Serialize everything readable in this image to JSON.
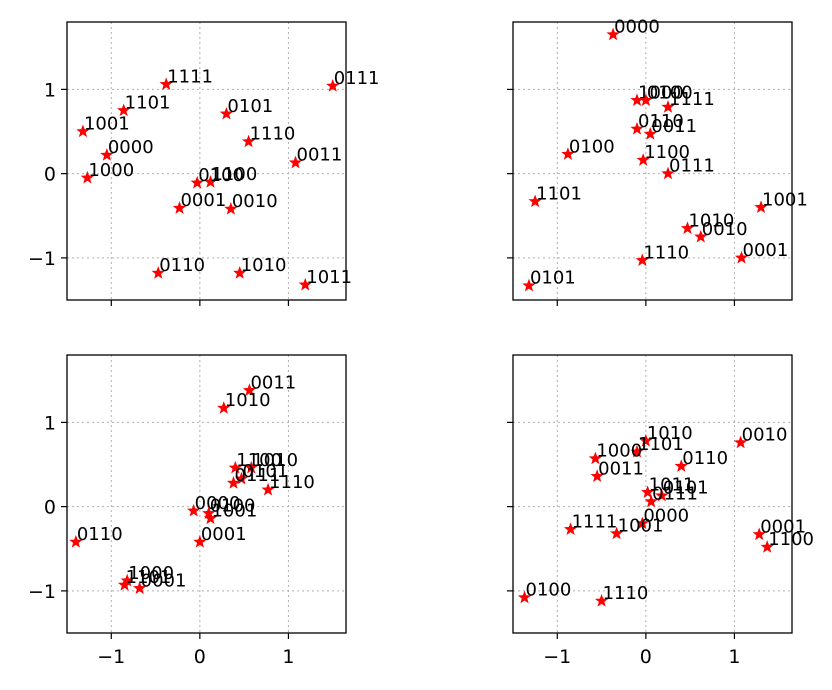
{
  "chart_data": [
    {
      "type": "scatter",
      "xlim": [
        -1.5,
        1.65
      ],
      "ylim": [
        -1.5,
        1.8
      ],
      "xticks": [
        -1,
        0,
        1
      ],
      "yticks": [
        -1,
        0,
        1
      ],
      "show_xticklabels": false,
      "show_yticklabels": true,
      "grid": true,
      "marker_color": "#ff0000",
      "points": [
        {
          "label": "1111",
          "x": -0.38,
          "y": 1.06
        },
        {
          "label": "0111",
          "x": 1.5,
          "y": 1.04
        },
        {
          "label": "1101",
          "x": -0.86,
          "y": 0.75
        },
        {
          "label": "0101",
          "x": 0.3,
          "y": 0.71
        },
        {
          "label": "1001",
          "x": -1.32,
          "y": 0.5
        },
        {
          "label": "1110",
          "x": 0.55,
          "y": 0.38
        },
        {
          "label": "0000",
          "x": -1.05,
          "y": 0.22
        },
        {
          "label": "0011",
          "x": 1.08,
          "y": 0.13
        },
        {
          "label": "1100",
          "x": 0.12,
          "y": -0.1
        },
        {
          "label": "0100",
          "x": -0.03,
          "y": -0.11
        },
        {
          "label": "1000",
          "x": -1.27,
          "y": -0.05
        },
        {
          "label": "0001",
          "x": -0.23,
          "y": -0.41
        },
        {
          "label": "0010",
          "x": 0.35,
          "y": -0.42
        },
        {
          "label": "0110",
          "x": -0.47,
          "y": -1.18
        },
        {
          "label": "1010",
          "x": 0.45,
          "y": -1.18
        },
        {
          "label": "1011",
          "x": 1.19,
          "y": -1.32
        }
      ]
    },
    {
      "type": "scatter",
      "xlim": [
        -1.5,
        1.65
      ],
      "ylim": [
        -1.5,
        1.8
      ],
      "xticks": [
        -1,
        0,
        1
      ],
      "yticks": [
        -1,
        0,
        1
      ],
      "show_xticklabels": false,
      "show_yticklabels": false,
      "grid": true,
      "marker_color": "#ff0000",
      "points": [
        {
          "label": "0000",
          "x": -0.37,
          "y": 1.65
        },
        {
          "label": "1000",
          "x": -0.1,
          "y": 0.87
        },
        {
          "label": "0100",
          "x": 0.0,
          "y": 0.87
        },
        {
          "label": "1111",
          "x": 0.25,
          "y": 0.79
        },
        {
          "label": "0110",
          "x": -0.1,
          "y": 0.53
        },
        {
          "label": "0011",
          "x": 0.05,
          "y": 0.47
        },
        {
          "label": "0100",
          "x": -0.88,
          "y": 0.23
        },
        {
          "label": "1100",
          "x": -0.03,
          "y": 0.16
        },
        {
          "label": "0111",
          "x": 0.25,
          "y": 0.0
        },
        {
          "label": "1101",
          "x": -1.25,
          "y": -0.33
        },
        {
          "label": "1001",
          "x": 1.3,
          "y": -0.4
        },
        {
          "label": "1010",
          "x": 0.47,
          "y": -0.65
        },
        {
          "label": "0010",
          "x": 0.62,
          "y": -0.75
        },
        {
          "label": "1110",
          "x": -0.04,
          "y": -1.03
        },
        {
          "label": "0001",
          "x": 1.08,
          "y": -1.0
        },
        {
          "label": "0101",
          "x": -1.32,
          "y": -1.33
        }
      ]
    },
    {
      "type": "scatter",
      "xlim": [
        -1.5,
        1.65
      ],
      "ylim": [
        -1.5,
        1.8
      ],
      "xticks": [
        -1,
        0,
        1
      ],
      "yticks": [
        -1,
        0,
        1
      ],
      "show_xticklabels": true,
      "show_yticklabels": true,
      "grid": true,
      "marker_color": "#ff0000",
      "points": [
        {
          "label": "0011",
          "x": 0.56,
          "y": 1.38
        },
        {
          "label": "1010",
          "x": 0.27,
          "y": 1.17
        },
        {
          "label": "1100",
          "x": 0.4,
          "y": 0.46
        },
        {
          "label": "1010",
          "x": 0.58,
          "y": 0.46
        },
        {
          "label": "0101",
          "x": 0.47,
          "y": 0.33
        },
        {
          "label": "0111",
          "x": 0.38,
          "y": 0.28
        },
        {
          "label": "1110",
          "x": 0.77,
          "y": 0.2
        },
        {
          "label": "0000",
          "x": -0.07,
          "y": -0.05
        },
        {
          "label": "0100",
          "x": 0.1,
          "y": -0.08
        },
        {
          "label": "1001",
          "x": 0.12,
          "y": -0.14
        },
        {
          "label": "0001",
          "x": 0.0,
          "y": -0.42
        },
        {
          "label": "0110",
          "x": -1.4,
          "y": -0.42
        },
        {
          "label": "1000",
          "x": -0.82,
          "y": -0.88
        },
        {
          "label": "1101",
          "x": -0.85,
          "y": -0.93
        },
        {
          "label": "0001",
          "x": -0.68,
          "y": -0.97
        }
      ]
    },
    {
      "type": "scatter",
      "xlim": [
        -1.5,
        1.65
      ],
      "ylim": [
        -1.5,
        1.8
      ],
      "xticks": [
        -1,
        0,
        1
      ],
      "yticks": [
        -1,
        0,
        1
      ],
      "show_xticklabels": true,
      "show_yticklabels": false,
      "grid": true,
      "marker_color": "#ff0000",
      "points": [
        {
          "label": "1010",
          "x": 0.0,
          "y": 0.78
        },
        {
          "label": "0010",
          "x": 1.07,
          "y": 0.76
        },
        {
          "label": "1101",
          "x": -0.1,
          "y": 0.65
        },
        {
          "label": "1000",
          "x": -0.57,
          "y": 0.57
        },
        {
          "label": "0110",
          "x": 0.4,
          "y": 0.48
        },
        {
          "label": "0011",
          "x": -0.55,
          "y": 0.36
        },
        {
          "label": "1011",
          "x": 0.02,
          "y": 0.17
        },
        {
          "label": "0101",
          "x": 0.18,
          "y": 0.13
        },
        {
          "label": "0111",
          "x": 0.06,
          "y": 0.06
        },
        {
          "label": "0000",
          "x": -0.04,
          "y": -0.2
        },
        {
          "label": "1001",
          "x": -0.33,
          "y": -0.32
        },
        {
          "label": "1111",
          "x": -0.85,
          "y": -0.27
        },
        {
          "label": "0001",
          "x": 1.28,
          "y": -0.33
        },
        {
          "label": "1100",
          "x": 1.37,
          "y": -0.48
        },
        {
          "label": "0100",
          "x": -1.37,
          "y": -1.08
        },
        {
          "label": "1110",
          "x": -0.5,
          "y": -1.12
        }
      ]
    }
  ]
}
